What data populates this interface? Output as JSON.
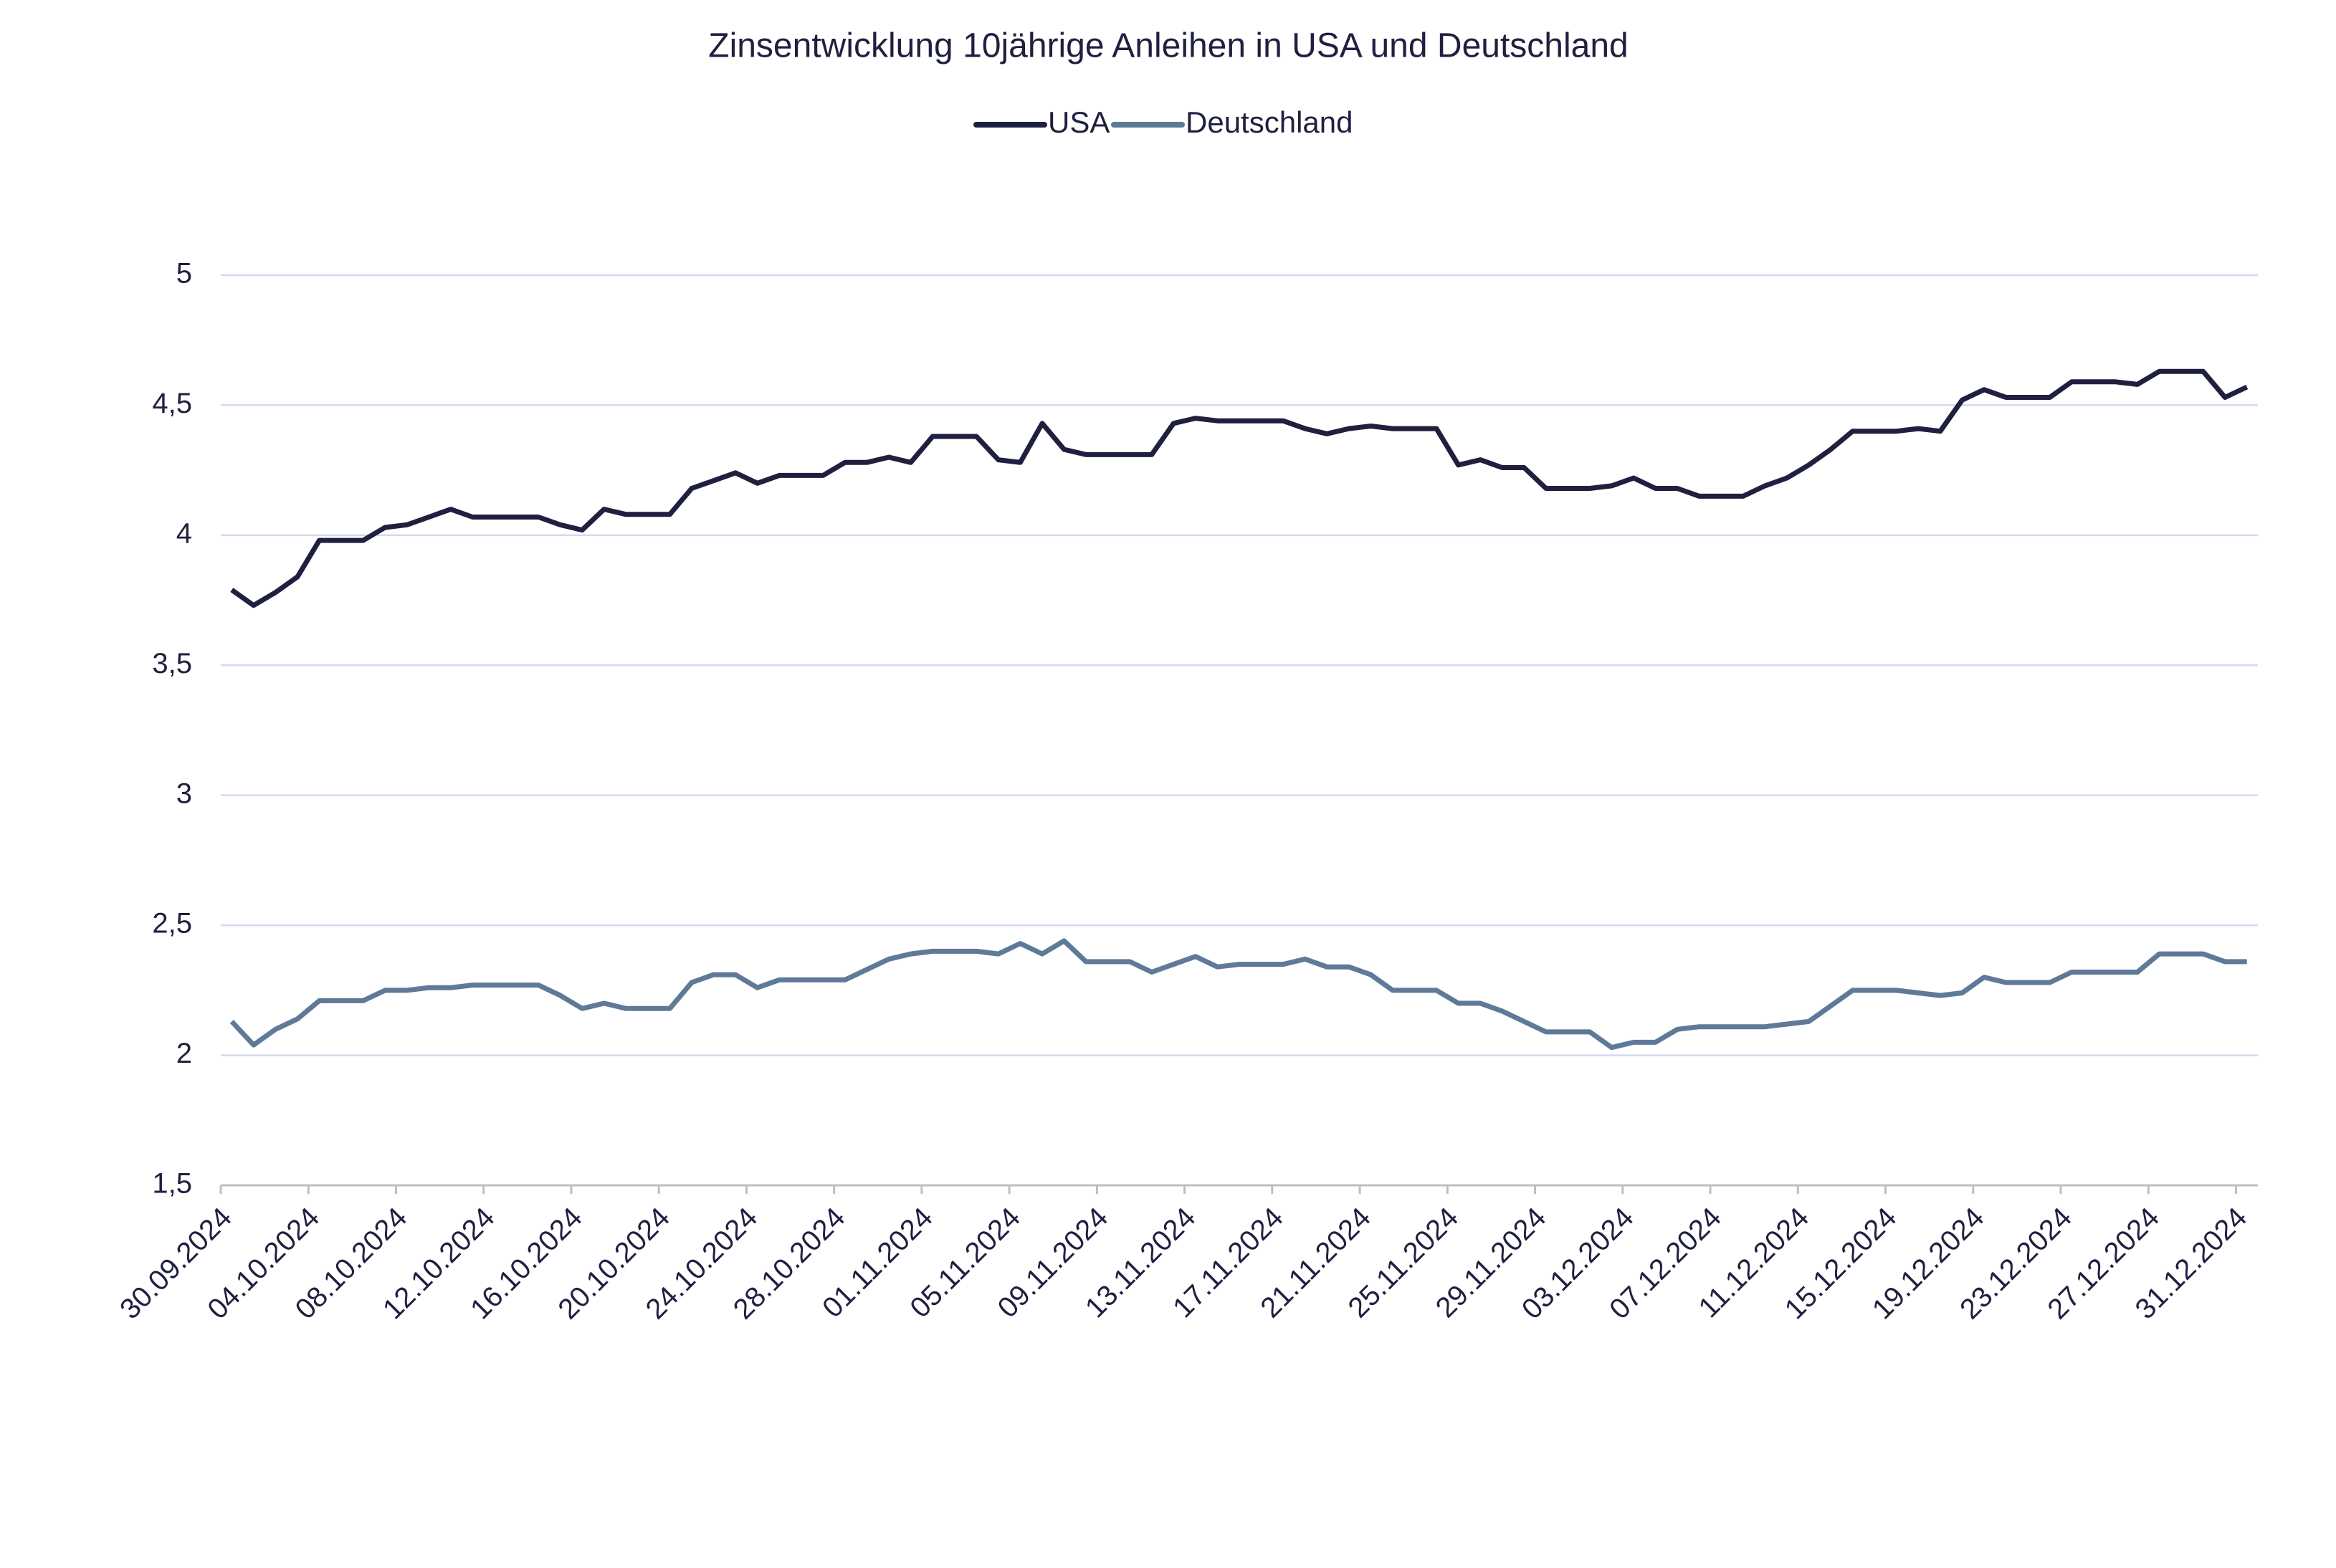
{
  "chart_data": {
    "type": "line",
    "title": "Zinsentwicklung 10jährige Anleihen in USA und Deutschland",
    "categories": [
      "30.09.2024",
      null,
      null,
      null,
      "04.10.2024",
      null,
      null,
      null,
      "08.10.2024",
      null,
      null,
      null,
      "12.10.2024",
      null,
      null,
      null,
      "16.10.2024",
      null,
      null,
      null,
      "20.10.2024",
      null,
      null,
      null,
      "24.10.2024",
      null,
      null,
      null,
      "28.10.2024",
      null,
      null,
      null,
      "01.11.2024",
      null,
      null,
      null,
      "05.11.2024",
      null,
      null,
      null,
      "09.11.2024",
      null,
      null,
      null,
      "13.11.2024",
      null,
      null,
      null,
      "17.11.2024",
      null,
      null,
      null,
      "21.11.2024",
      null,
      null,
      null,
      "25.11.2024",
      null,
      null,
      null,
      "29.11.2024",
      null,
      null,
      null,
      "03.12.2024",
      null,
      null,
      null,
      "07.12.2024",
      null,
      null,
      null,
      "11.12.2024",
      null,
      null,
      null,
      "15.12.2024",
      null,
      null,
      null,
      "19.12.2024",
      null,
      null,
      null,
      "23.12.2024",
      null,
      null,
      null,
      "27.12.2024",
      null,
      null,
      null,
      "31.12.2024"
    ],
    "series": [
      {
        "name": "USA",
        "color": "#1f2040",
        "values": [
          3.79,
          3.73,
          3.78,
          3.84,
          3.98,
          3.98,
          3.98,
          4.03,
          4.04,
          4.07,
          4.1,
          4.07,
          4.07,
          4.07,
          4.07,
          4.04,
          4.02,
          4.1,
          4.08,
          4.08,
          4.08,
          4.18,
          4.21,
          4.24,
          4.2,
          4.23,
          4.23,
          4.23,
          4.28,
          4.28,
          4.3,
          4.28,
          4.38,
          4.38,
          4.38,
          4.29,
          4.28,
          4.43,
          4.33,
          4.31,
          4.31,
          4.31,
          4.31,
          4.43,
          4.45,
          4.44,
          4.44,
          4.44,
          4.44,
          4.41,
          4.39,
          4.41,
          4.42,
          4.41,
          4.41,
          4.41,
          4.27,
          4.29,
          4.26,
          4.26,
          4.18,
          4.18,
          4.18,
          4.19,
          4.22,
          4.18,
          4.18,
          4.15,
          4.15,
          4.15,
          4.19,
          4.22,
          4.27,
          4.33,
          4.4,
          4.4,
          4.4,
          4.41,
          4.4,
          4.52,
          4.56,
          4.53,
          4.53,
          4.53,
          4.59,
          4.59,
          4.59,
          4.58,
          4.63,
          4.63,
          4.63,
          4.53,
          4.57
        ]
      },
      {
        "name": "Deutschland",
        "color": "#5f7a99",
        "values": [
          2.13,
          2.04,
          2.1,
          2.14,
          2.21,
          2.21,
          2.21,
          2.25,
          2.25,
          2.26,
          2.26,
          2.27,
          2.27,
          2.27,
          2.27,
          2.23,
          2.18,
          2.2,
          2.18,
          2.18,
          2.18,
          2.28,
          2.31,
          2.31,
          2.26,
          2.29,
          2.29,
          2.29,
          2.29,
          2.33,
          2.37,
          2.39,
          2.4,
          2.4,
          2.4,
          2.39,
          2.43,
          2.39,
          2.44,
          2.36,
          2.36,
          2.36,
          2.32,
          2.35,
          2.38,
          2.34,
          2.35,
          2.35,
          2.35,
          2.37,
          2.34,
          2.34,
          2.31,
          2.25,
          2.25,
          2.25,
          2.2,
          2.2,
          2.17,
          2.13,
          2.09,
          2.09,
          2.09,
          2.03,
          2.05,
          2.05,
          2.1,
          2.11,
          2.11,
          2.11,
          2.11,
          2.12,
          2.13,
          2.19,
          2.25,
          2.25,
          2.25,
          2.24,
          2.23,
          2.24,
          2.3,
          2.28,
          2.28,
          2.28,
          2.32,
          2.32,
          2.32,
          2.32,
          2.39,
          2.39,
          2.39,
          2.36,
          2.36
        ]
      }
    ],
    "ylim": [
      1.5,
      5
    ],
    "yticks": [
      {
        "value": 1.5,
        "label": "1,5"
      },
      2,
      {
        "value": 2.5,
        "label": "2,5"
      },
      3,
      {
        "value": 3.5,
        "label": "3,5"
      },
      4,
      {
        "value": 4.5,
        "label": "4,5"
      },
      5
    ],
    "grid": true,
    "legend": "top"
  }
}
